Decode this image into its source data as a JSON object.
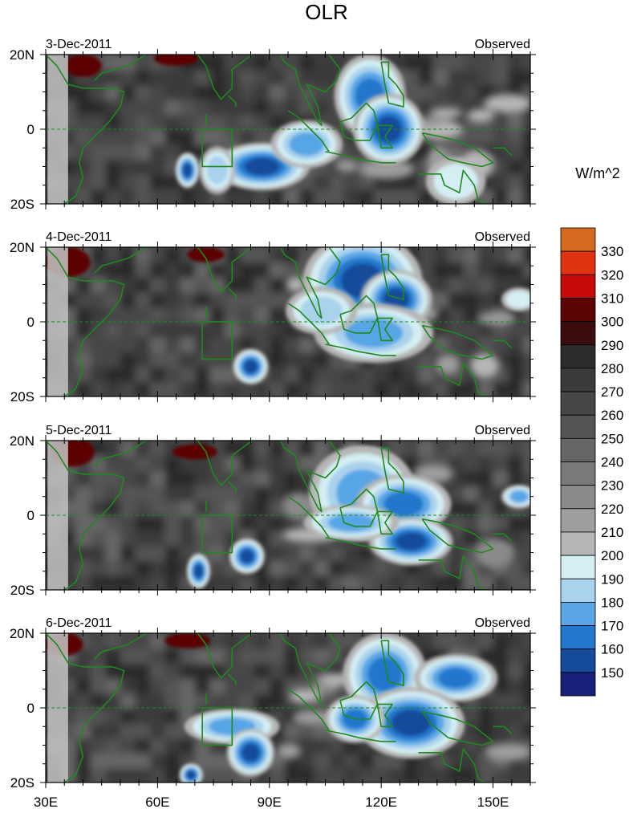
{
  "figure": {
    "title": "OLR",
    "colorbar_unit": "W/m^2"
  },
  "colors": {
    "coast": "#1e8a1e",
    "frame": "#000000"
  },
  "chart_data": {
    "type": "heatmap",
    "variable": "OLR",
    "unit": "W/m^2",
    "x_range": [
      30,
      160
    ],
    "y_range": [
      -20,
      20
    ],
    "x_ticks": [
      {
        "value": 30,
        "label": "30E"
      },
      {
        "value": 60,
        "label": "60E"
      },
      {
        "value": 90,
        "label": "90E"
      },
      {
        "value": 120,
        "label": "120E"
      },
      {
        "value": 150,
        "label": "150E"
      }
    ],
    "y_ticks": [
      {
        "value": 20,
        "label": "20N"
      },
      {
        "value": 0,
        "label": "0"
      },
      {
        "value": -20,
        "label": "20S"
      }
    ],
    "colorbar": {
      "levels": [
        150,
        160,
        170,
        180,
        190,
        200,
        210,
        220,
        230,
        240,
        250,
        260,
        270,
        280,
        290,
        300,
        310,
        320,
        330
      ],
      "colors": [
        "#1a1f7a",
        "#154c9a",
        "#2377cc",
        "#59a5e6",
        "#a9d2ec",
        "#d4eef3",
        "#b6b6b6",
        "#9e9e9e",
        "#8a8a8a",
        "#7a7a7a",
        "#666666",
        "#555555",
        "#474747",
        "#3b3b3b",
        "#2c2c2c",
        "#3a0c0c",
        "#5c0505",
        "#c50a0a",
        "#e03312",
        "#d46a1e"
      ]
    },
    "panels": [
      {
        "date": "3-Dec-2011",
        "label": "Observed",
        "convective_cores": [
          {
            "lon": 117,
            "lat": 9,
            "rlon": 6,
            "rlat": 7,
            "olr": 160
          },
          {
            "lon": 122,
            "lat": 0,
            "rlon": 6,
            "rlat": 6,
            "olr": 150
          },
          {
            "lon": 88,
            "lat": -10,
            "rlon": 8,
            "rlat": 4,
            "olr": 150
          },
          {
            "lon": 100,
            "lat": -4,
            "rlon": 6,
            "rlat": 4,
            "olr": 170
          },
          {
            "lon": 76,
            "lat": -11,
            "rlon": 3,
            "rlat": 4,
            "olr": 180
          },
          {
            "lon": 68,
            "lat": -11,
            "rlon": 2,
            "rlat": 3,
            "olr": 150
          },
          {
            "lon": 140,
            "lat": -14,
            "rlon": 5,
            "rlat": 4,
            "olr": 190
          }
        ],
        "warm_spots": [
          {
            "lon": 40,
            "lat": 17,
            "rlon": 5,
            "rlat": 3,
            "olr": 300
          },
          {
            "lon": 65,
            "lat": 19,
            "rlon": 6,
            "rlat": 2,
            "olr": 300
          }
        ]
      },
      {
        "date": "4-Dec-2011",
        "label": "Observed",
        "convective_cores": [
          {
            "lon": 115,
            "lat": 11,
            "rlon": 10,
            "rlat": 8,
            "olr": 150
          },
          {
            "lon": 124,
            "lat": 6,
            "rlon": 6,
            "rlat": 5,
            "olr": 150
          },
          {
            "lon": 118,
            "lat": -3,
            "rlon": 10,
            "rlat": 5,
            "olr": 170
          },
          {
            "lon": 104,
            "lat": 3,
            "rlon": 6,
            "rlat": 4,
            "olr": 180
          },
          {
            "lon": 85,
            "lat": -12,
            "rlon": 3,
            "rlat": 3,
            "olr": 150
          },
          {
            "lon": 157,
            "lat": 6,
            "rlon": 3,
            "rlat": 2,
            "olr": 190
          }
        ],
        "warm_spots": [
          {
            "lon": 36,
            "lat": 16,
            "rlon": 6,
            "rlat": 4,
            "olr": 300
          },
          {
            "lon": 73,
            "lat": 18,
            "rlon": 5,
            "rlat": 2,
            "olr": 300
          }
        ]
      },
      {
        "date": "5-Dec-2011",
        "label": "Observed",
        "convective_cores": [
          {
            "lon": 115,
            "lat": 6,
            "rlon": 9,
            "rlat": 8,
            "olr": 170
          },
          {
            "lon": 126,
            "lat": 3,
            "rlon": 8,
            "rlat": 5,
            "olr": 160
          },
          {
            "lon": 128,
            "lat": -7,
            "rlon": 7,
            "rlat": 4,
            "olr": 150
          },
          {
            "lon": 112,
            "lat": -2,
            "rlon": 8,
            "rlat": 3,
            "olr": 170
          },
          {
            "lon": 84,
            "lat": -11,
            "rlon": 3,
            "rlat": 3,
            "olr": 150
          },
          {
            "lon": 71,
            "lat": -15,
            "rlon": 2,
            "rlat": 3,
            "olr": 150
          },
          {
            "lon": 157,
            "lat": 5,
            "rlon": 3,
            "rlat": 2,
            "olr": 170
          }
        ],
        "warm_spots": [
          {
            "lon": 37,
            "lat": 17,
            "rlon": 6,
            "rlat": 4,
            "olr": 300
          },
          {
            "lon": 70,
            "lat": 17,
            "rlon": 6,
            "rlat": 2,
            "olr": 300
          }
        ]
      },
      {
        "date": "6-Dec-2011",
        "label": "Observed",
        "convective_cores": [
          {
            "lon": 121,
            "lat": 9,
            "rlon": 7,
            "rlat": 7,
            "olr": 160
          },
          {
            "lon": 140,
            "lat": 8,
            "rlon": 7,
            "rlat": 4,
            "olr": 160
          },
          {
            "lon": 128,
            "lat": -4,
            "rlon": 9,
            "rlat": 6,
            "olr": 150
          },
          {
            "lon": 113,
            "lat": -3,
            "rlon": 5,
            "rlat": 4,
            "olr": 160
          },
          {
            "lon": 80,
            "lat": -5,
            "rlon": 8,
            "rlat": 3,
            "olr": 170
          },
          {
            "lon": 85,
            "lat": -12,
            "rlon": 4,
            "rlat": 4,
            "olr": 150
          },
          {
            "lon": 69,
            "lat": -18,
            "rlon": 2,
            "rlat": 2,
            "olr": 150
          }
        ],
        "warm_spots": [
          {
            "lon": 35,
            "lat": 17,
            "rlon": 5,
            "rlat": 3,
            "olr": 300
          },
          {
            "lon": 68,
            "lat": 18,
            "rlon": 6,
            "rlat": 2,
            "olr": 300
          }
        ]
      }
    ]
  }
}
